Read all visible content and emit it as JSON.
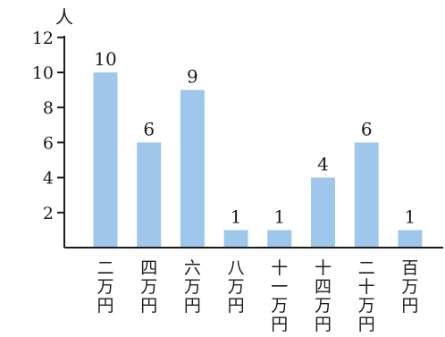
{
  "chart_data": {
    "type": "bar",
    "categories": [
      "二万円",
      "四万円",
      "六万円",
      "八万円",
      "十一万円",
      "十四万円",
      "二十万円",
      "百万円"
    ],
    "values": [
      10,
      6,
      9,
      1,
      1,
      4,
      6,
      1
    ],
    "ylabel": "人",
    "yticks": [
      2,
      4,
      6,
      8,
      10,
      12
    ],
    "ylim": [
      0,
      12.5
    ],
    "grid": false,
    "bar_color": "#9fc7ec",
    "axis_color": "#1a1a1a"
  }
}
